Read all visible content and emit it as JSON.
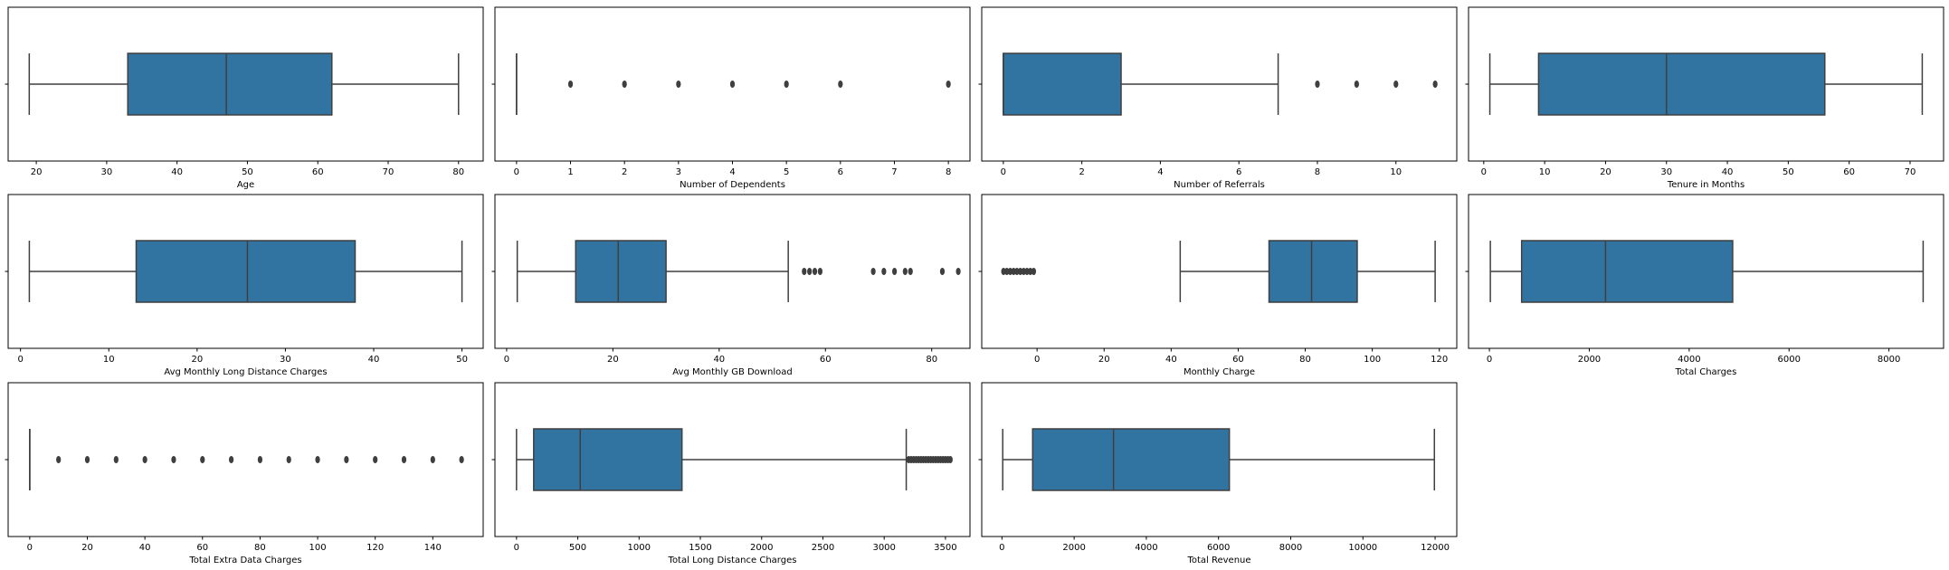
{
  "figure": {
    "type": "boxplot-grid",
    "rows": 3,
    "cols": 4
  },
  "chart_data": [
    {
      "type": "box",
      "xlabel": "Age",
      "xlim": [
        16,
        83.5
      ],
      "ticks": [
        20,
        30,
        40,
        50,
        60,
        70,
        80
      ],
      "whisker_low": 19,
      "q1": 33,
      "median": 47,
      "q3": 62,
      "whisker_high": 80,
      "outliers": []
    },
    {
      "type": "box",
      "xlabel": "Number of Dependents",
      "xlim": [
        -0.4,
        8.4
      ],
      "ticks": [
        0,
        1,
        2,
        3,
        4,
        5,
        6,
        7,
        8
      ],
      "whisker_low": 0,
      "q1": 0,
      "median": 0,
      "q3": 0,
      "whisker_high": 0,
      "outliers": [
        1,
        2,
        3,
        4,
        5,
        6,
        8
      ]
    },
    {
      "type": "box",
      "xlabel": "Number of Referrals",
      "xlim": [
        -0.55,
        11.55
      ],
      "ticks": [
        0,
        2,
        4,
        6,
        8,
        10
      ],
      "whisker_low": 0,
      "q1": 0,
      "median": 0,
      "q3": 3,
      "whisker_high": 7,
      "outliers": [
        8,
        9,
        10,
        11
      ]
    },
    {
      "type": "box",
      "xlabel": "Tenure in Months",
      "xlim": [
        -2.5,
        75.5
      ],
      "ticks": [
        0,
        10,
        20,
        30,
        40,
        50,
        60,
        70
      ],
      "whisker_low": 1,
      "q1": 9,
      "median": 30,
      "q3": 56,
      "whisker_high": 72,
      "outliers": []
    },
    {
      "type": "box",
      "xlabel": "Avg Monthly Long Distance Charges",
      "xlim": [
        -1.4,
        52.4
      ],
      "ticks": [
        0,
        10,
        20,
        30,
        40,
        50
      ],
      "whisker_low": 1,
      "q1": 13.1,
      "median": 25.7,
      "q3": 37.9,
      "whisker_high": 50,
      "outliers": []
    },
    {
      "type": "box",
      "xlabel": "Avg Monthly GB Download",
      "xlim": [
        -2.2,
        87.2
      ],
      "ticks": [
        0,
        20,
        40,
        60,
        80
      ],
      "whisker_low": 2,
      "q1": 13,
      "median": 21,
      "q3": 30,
      "whisker_high": 53,
      "outliers": [
        56,
        57,
        58,
        59,
        69,
        71,
        73,
        75,
        76,
        82,
        85
      ]
    },
    {
      "type": "box",
      "xlabel": "Monthly Charge",
      "xlim": [
        -16.5,
        125.2
      ],
      "ticks": [
        0,
        20,
        40,
        60,
        80,
        100,
        120
      ],
      "whisker_low": 42.7,
      "q1": 69.2,
      "median": 81.9,
      "q3": 95.5,
      "whisker_high": 118.75,
      "outliers": [
        -10,
        -9,
        -8,
        -7,
        -6,
        -5,
        -4,
        -3,
        -2,
        -1
      ]
    },
    {
      "type": "box",
      "xlabel": "Total Charges",
      "xlim": [
        -418,
        9094
      ],
      "ticks": [
        0,
        2000,
        4000,
        6000,
        8000
      ],
      "whisker_low": 18.85,
      "q1": 645,
      "median": 2325,
      "q3": 4871,
      "whisker_high": 8685,
      "outliers": []
    },
    {
      "type": "box",
      "xlabel": "Total Extra Data Charges",
      "xlim": [
        -7.5,
        157.5
      ],
      "ticks": [
        0,
        20,
        40,
        60,
        80,
        100,
        120,
        140
      ],
      "whisker_low": 0,
      "q1": 0,
      "median": 0,
      "q3": 0,
      "whisker_high": 0,
      "outliers": [
        10,
        20,
        30,
        40,
        50,
        60,
        70,
        80,
        90,
        100,
        110,
        120,
        130,
        140,
        150
      ]
    },
    {
      "type": "box",
      "xlabel": "Total Long Distance Charges",
      "xlim": [
        -176,
        3700
      ],
      "ticks": [
        0,
        500,
        1000,
        1500,
        2000,
        2500,
        3000,
        3500
      ],
      "whisker_low": 0,
      "q1": 140,
      "median": 520,
      "q3": 1350,
      "whisker_high": 3180,
      "outliers": [
        3200,
        3220,
        3240,
        3260,
        3280,
        3300,
        3320,
        3340,
        3360,
        3380,
        3400,
        3420,
        3440,
        3460,
        3480,
        3500,
        3520,
        3540
      ]
    },
    {
      "type": "box",
      "xlabel": "Total Revenue",
      "xlim": [
        -560,
        12600
      ],
      "ticks": [
        0,
        2000,
        4000,
        6000,
        8000,
        10000,
        12000
      ],
      "whisker_low": 21.4,
      "q1": 850,
      "median": 3090,
      "q3": 6300,
      "whisker_high": 11980,
      "outliers": []
    }
  ]
}
